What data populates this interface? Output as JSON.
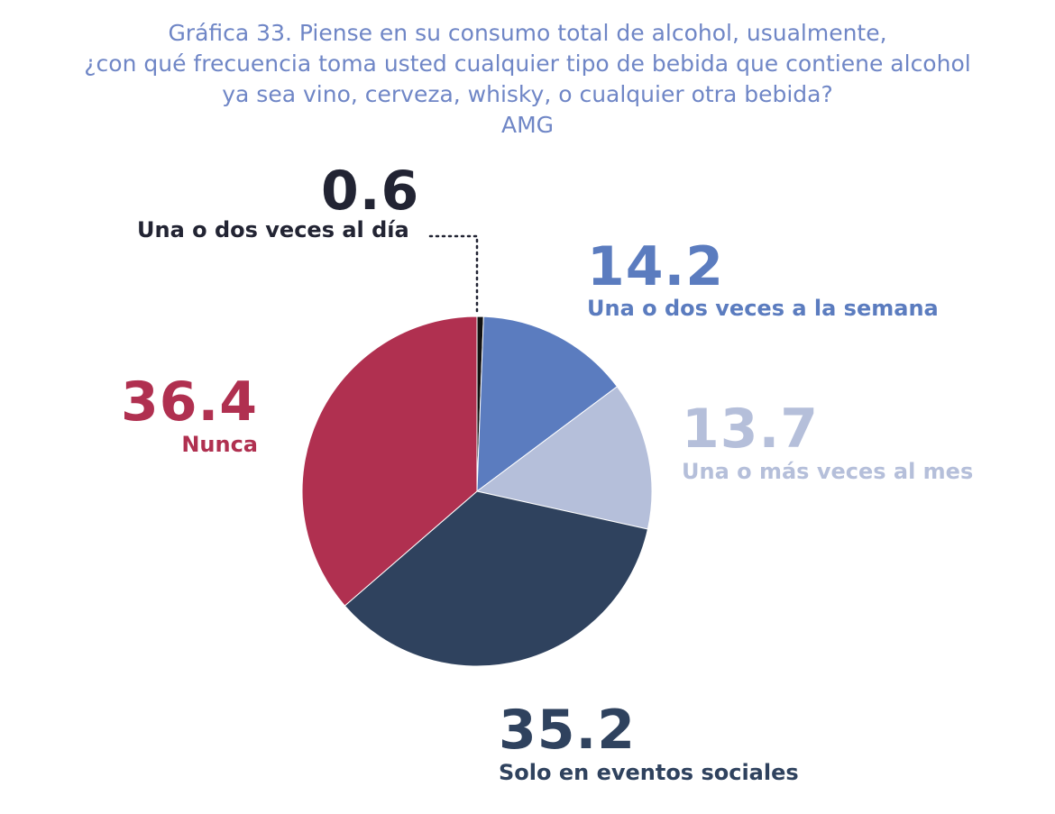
{
  "chart_data": {
    "type": "pie",
    "title_lines": [
      "Gráfica 33. Piense en su consumo total de alcohol, usualmente,",
      "¿con qué frecuencia toma usted cualquier tipo de bebida que contiene alcohol",
      "ya sea vino, cerveza, whisky, o cualquier otra bebida?",
      "AMG"
    ],
    "slices": [
      {
        "label": "Una o dos veces al día",
        "value": 0.6,
        "display": "0.6",
        "color": "#111111"
      },
      {
        "label": "Una o dos veces a la semana",
        "value": 14.2,
        "display": "14.2",
        "color": "#5b7cbf"
      },
      {
        "label": "Una o más veces al mes",
        "value": 13.7,
        "display": "13.7",
        "color": "#b5bfda"
      },
      {
        "label": "Solo en eventos sociales",
        "value": 35.2,
        "display": "35.2",
        "color": "#2f425e"
      },
      {
        "label": "Nunca",
        "value": 36.4,
        "display": "36.4",
        "color": "#b03050"
      }
    ],
    "label_colors": [
      "#222433",
      "#5b7cbf",
      "#b5bfda",
      "#2f425e",
      "#b03050"
    ],
    "start": "12 o'clock",
    "direction": "clockwise",
    "leader_line": "dotted"
  }
}
